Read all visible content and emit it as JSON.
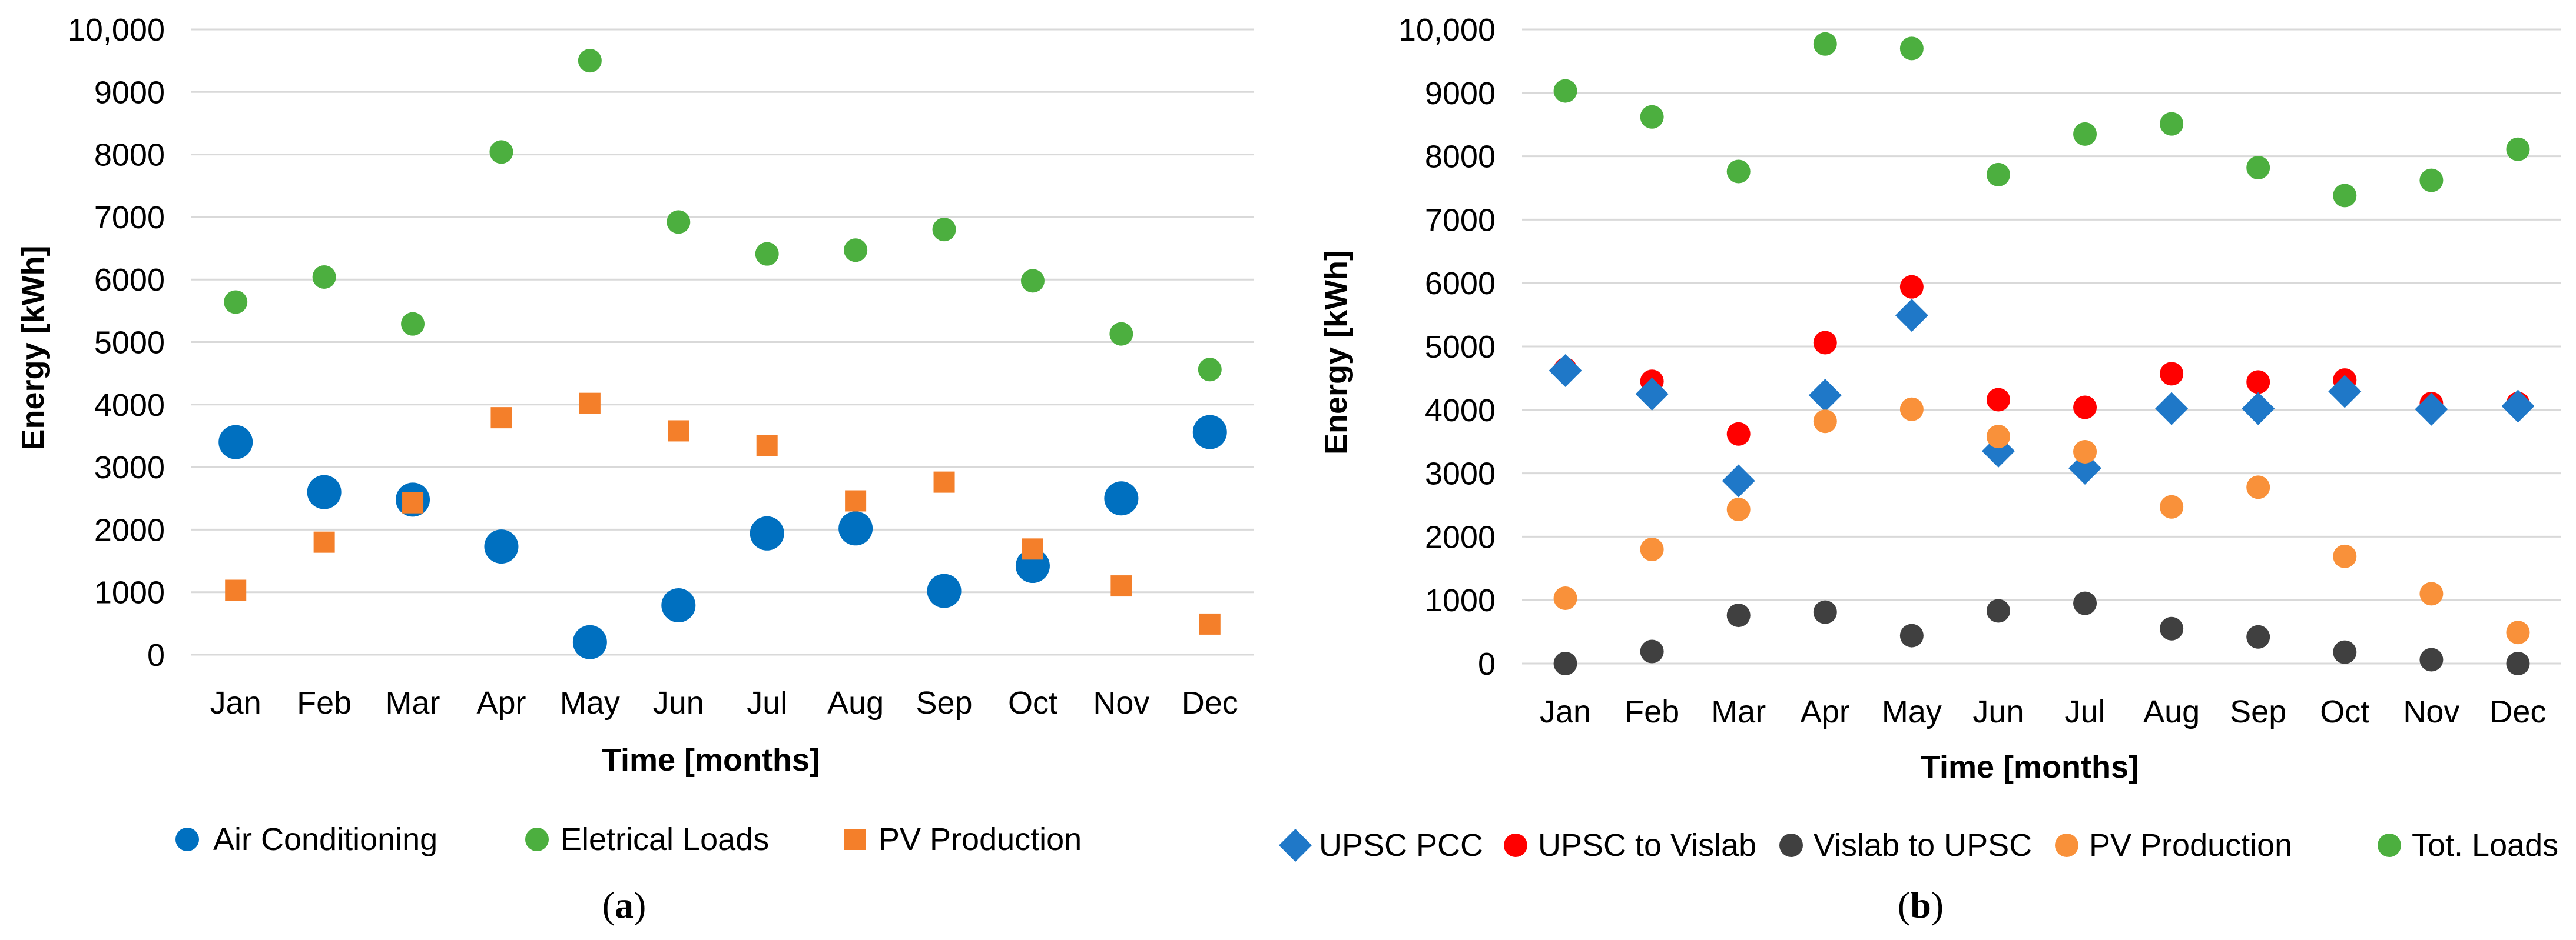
{
  "chart_data": [
    {
      "type": "scatter",
      "panel_label": "a",
      "xlabel": "Time [months]",
      "ylabel": "Energy [kWh]",
      "ylim": [
        0,
        10000
      ],
      "yticks": [
        0,
        1000,
        2000,
        3000,
        4000,
        5000,
        6000,
        7000,
        8000,
        9000,
        10000
      ],
      "ytick_labels": [
        "0",
        "1000",
        "2000",
        "3000",
        "4000",
        "5000",
        "6000",
        "7000",
        "8000",
        "9000",
        "10,000"
      ],
      "categories": [
        "Jan",
        "Feb",
        "Mar",
        "Apr",
        "May",
        "Jun",
        "Jul",
        "Aug",
        "Sep",
        "Oct",
        "Nov",
        "Dec"
      ],
      "grid": true,
      "legend_position": "bottom",
      "series": [
        {
          "name": "Air Conditioning",
          "marker": "circle-large",
          "color": "#0070c0",
          "values": [
            3400,
            2600,
            2480,
            1730,
            200,
            790,
            1940,
            2020,
            1020,
            1420,
            2500,
            3560
          ]
        },
        {
          "name": "Eletrical Loads",
          "marker": "circle",
          "color": "#4caf3f",
          "values": [
            5640,
            6040,
            5290,
            8040,
            9500,
            6920,
            6410,
            6470,
            6800,
            5980,
            5130,
            4560
          ]
        },
        {
          "name": "PV Production",
          "marker": "square",
          "color": "#f47f2a",
          "values": [
            1030,
            1800,
            2430,
            3790,
            4020,
            3580,
            3340,
            2460,
            2760,
            1690,
            1100,
            490
          ]
        }
      ]
    },
    {
      "type": "scatter",
      "panel_label": "b",
      "xlabel": "Time [months]",
      "ylabel": "Energy [kWh]",
      "ylim": [
        0,
        10000
      ],
      "yticks": [
        0,
        1000,
        2000,
        3000,
        4000,
        5000,
        6000,
        7000,
        8000,
        9000,
        10000
      ],
      "ytick_labels": [
        "0",
        "1000",
        "2000",
        "3000",
        "4000",
        "5000",
        "6000",
        "7000",
        "8000",
        "9000",
        "10,000"
      ],
      "categories": [
        "Jan",
        "Feb",
        "Mar",
        "Apr",
        "May",
        "Jun",
        "Jul",
        "Aug",
        "Sep",
        "Oct",
        "Nov",
        "Dec"
      ],
      "grid": true,
      "legend_position": "bottom",
      "series": [
        {
          "name": "Tot. Loads",
          "marker": "circle",
          "color": "#4caf3f",
          "values": [
            9030,
            8620,
            7760,
            9770,
            9700,
            7710,
            8350,
            8510,
            7820,
            7380,
            7620,
            8110
          ]
        },
        {
          "name": "UPSC to Vislab",
          "marker": "circle",
          "color": "#ff0000",
          "values": [
            4640,
            4450,
            3620,
            5060,
            5940,
            4160,
            4040,
            4570,
            4440,
            4470,
            4100,
            4100
          ]
        },
        {
          "name": "UPSC PCC",
          "marker": "diamond",
          "color": "#1f78c8",
          "values": [
            4620,
            4250,
            2880,
            4230,
            5490,
            3350,
            3080,
            4020,
            4020,
            4290,
            4010,
            4060
          ]
        },
        {
          "name": "PV Production",
          "marker": "circle",
          "color": "#f9913a",
          "values": [
            1030,
            1800,
            2430,
            3820,
            4010,
            3580,
            3340,
            2470,
            2780,
            1690,
            1100,
            490
          ]
        },
        {
          "name": "Vislab to UPSC",
          "marker": "circle",
          "color": "#404040",
          "values": [
            0,
            190,
            760,
            810,
            440,
            830,
            950,
            550,
            420,
            180,
            60,
            0
          ]
        }
      ],
      "legend_order": [
        "UPSC PCC",
        "UPSC to Vislab",
        "Vislab to UPSC",
        "PV Production",
        "Tot. Loads"
      ]
    }
  ]
}
